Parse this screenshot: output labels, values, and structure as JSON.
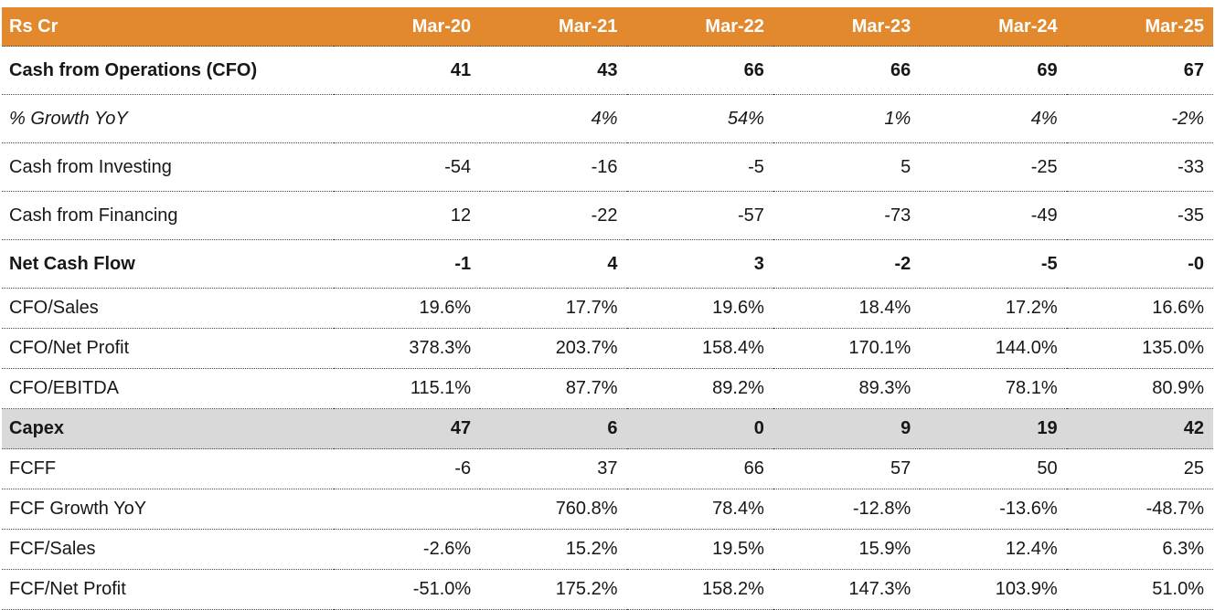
{
  "table": {
    "unit_label": "Rs Cr",
    "columns": [
      "Mar-20",
      "Mar-21",
      "Mar-22",
      "Mar-23",
      "Mar-24",
      "Mar-25"
    ],
    "rows": [
      {
        "label": "Cash from Operations (CFO)",
        "style": "bold",
        "values": [
          "41",
          "43",
          "66",
          "66",
          "69",
          "67"
        ]
      },
      {
        "label": "% Growth YoY",
        "style": "italic",
        "values": [
          "",
          "4%",
          "54%",
          "1%",
          "4%",
          "-2%"
        ]
      },
      {
        "label": "Cash from Investing",
        "style": "normal",
        "values": [
          "-54",
          "-16",
          "-5",
          "5",
          "-25",
          "-33"
        ]
      },
      {
        "label": "Cash from Financing",
        "style": "normal",
        "values": [
          "12",
          "-22",
          "-57",
          "-73",
          "-49",
          "-35"
        ]
      },
      {
        "label": "Net Cash Flow",
        "style": "bold",
        "values": [
          "-1",
          "4",
          "3",
          "-2",
          "-5",
          "-0"
        ]
      },
      {
        "label": "CFO/Sales",
        "style": "normal",
        "values": [
          "19.6%",
          "17.7%",
          "19.6%",
          "18.4%",
          "17.2%",
          "16.6%"
        ]
      },
      {
        "label": "CFO/Net Profit",
        "style": "normal",
        "values": [
          "378.3%",
          "203.7%",
          "158.4%",
          "170.1%",
          "144.0%",
          "135.0%"
        ]
      },
      {
        "label": "CFO/EBITDA",
        "style": "normal",
        "values": [
          "115.1%",
          "87.7%",
          "89.2%",
          "89.3%",
          "78.1%",
          "80.9%"
        ]
      },
      {
        "label": "Capex",
        "style": "bold-highlight",
        "values": [
          "47",
          "6",
          "0",
          "9",
          "19",
          "42"
        ]
      },
      {
        "label": "FCFF",
        "style": "normal",
        "values": [
          "-6",
          "37",
          "66",
          "57",
          "50",
          "25"
        ]
      },
      {
        "label": "FCF Growth YoY",
        "style": "normal",
        "values": [
          "",
          "760.8%",
          "78.4%",
          "-12.8%",
          "-13.6%",
          "-48.7%"
        ]
      },
      {
        "label": "FCF/Sales",
        "style": "normal",
        "values": [
          "-2.6%",
          "15.2%",
          "19.5%",
          "15.9%",
          "12.4%",
          "6.3%"
        ]
      },
      {
        "label": "FCF/Net Profit",
        "style": "normal",
        "values": [
          "-51.0%",
          "175.2%",
          "158.2%",
          "147.3%",
          "103.9%",
          "51.0%"
        ]
      }
    ],
    "colors": {
      "header_bg": "#E3892D",
      "header_text": "#FFFFFF",
      "highlight_bg": "#D9D9D9",
      "row_border": "#4A4A4A",
      "text": "#171717"
    }
  }
}
